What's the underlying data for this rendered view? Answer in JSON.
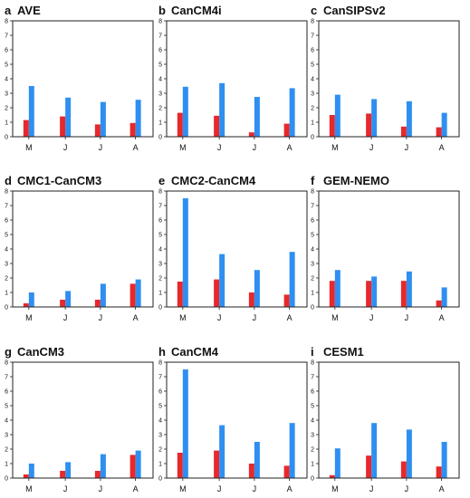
{
  "colors": {
    "series_red": "#e8282b",
    "series_blue": "#2f8ff0",
    "axis": "#222222"
  },
  "chart_data": [
    {
      "type": "bar",
      "panel_letter": "a",
      "title": "AVE",
      "categories": [
        "M",
        "J",
        "J",
        "A"
      ],
      "ylim": [
        0,
        8
      ],
      "yticks": [
        0,
        1,
        2,
        3,
        4,
        5,
        6,
        7,
        8
      ],
      "series": [
        {
          "values": [
            1.15,
            1.4,
            0.85,
            0.95
          ]
        },
        {
          "values": [
            3.5,
            2.7,
            2.4,
            2.55
          ]
        }
      ]
    },
    {
      "type": "bar",
      "panel_letter": "b",
      "title": "CanCM4i",
      "categories": [
        "M",
        "J",
        "J",
        "A"
      ],
      "ylim": [
        0,
        8
      ],
      "yticks": [
        0,
        1,
        2,
        3,
        4,
        5,
        6,
        7,
        8
      ],
      "series": [
        {
          "values": [
            1.65,
            1.45,
            0.3,
            0.9
          ]
        },
        {
          "values": [
            3.45,
            3.7,
            2.75,
            3.35
          ]
        }
      ]
    },
    {
      "type": "bar",
      "panel_letter": "c",
      "title": "CanSIPSv2",
      "categories": [
        "M",
        "J",
        "J",
        "A"
      ],
      "ylim": [
        0,
        8
      ],
      "yticks": [
        0,
        1,
        2,
        3,
        4,
        5,
        6,
        7,
        8
      ],
      "series": [
        {
          "values": [
            1.5,
            1.6,
            0.7,
            0.65
          ]
        },
        {
          "values": [
            2.9,
            2.6,
            2.45,
            1.65
          ]
        }
      ]
    },
    {
      "type": "bar",
      "panel_letter": "d",
      "title": "CMC1-CanCM3",
      "categories": [
        "M",
        "J",
        "J",
        "A"
      ],
      "ylim": [
        0,
        8
      ],
      "yticks": [
        0,
        1,
        2,
        3,
        4,
        5,
        6,
        7,
        8
      ],
      "series": [
        {
          "values": [
            0.25,
            0.5,
            0.5,
            1.6
          ]
        },
        {
          "values": [
            1.0,
            1.1,
            1.6,
            1.9
          ]
        }
      ]
    },
    {
      "type": "bar",
      "panel_letter": "e",
      "title": "CMC2-CanCM4",
      "categories": [
        "M",
        "J",
        "J",
        "A"
      ],
      "ylim": [
        0,
        8
      ],
      "yticks": [
        0,
        1,
        2,
        3,
        4,
        5,
        6,
        7,
        8
      ],
      "series": [
        {
          "values": [
            1.75,
            1.9,
            1.0,
            0.85
          ]
        },
        {
          "values": [
            7.5,
            3.65,
            2.55,
            3.8
          ]
        }
      ]
    },
    {
      "type": "bar",
      "panel_letter": "f",
      "title": "GEM-NEMO",
      "categories": [
        "M",
        "J",
        "J",
        "A"
      ],
      "ylim": [
        0,
        8
      ],
      "yticks": [
        0,
        1,
        2,
        3,
        4,
        5,
        6,
        7,
        8
      ],
      "series": [
        {
          "values": [
            1.8,
            1.8,
            1.8,
            0.45
          ]
        },
        {
          "values": [
            2.55,
            2.1,
            2.45,
            1.35
          ]
        }
      ]
    },
    {
      "type": "bar",
      "panel_letter": "g",
      "title": "CanCM3",
      "categories": [
        "M",
        "J",
        "J",
        "A"
      ],
      "ylim": [
        0,
        8
      ],
      "yticks": [
        0,
        1,
        2,
        3,
        4,
        5,
        6,
        7,
        8
      ],
      "series": [
        {
          "values": [
            0.25,
            0.5,
            0.5,
            1.6
          ]
        },
        {
          "values": [
            1.0,
            1.1,
            1.65,
            1.9
          ]
        }
      ]
    },
    {
      "type": "bar",
      "panel_letter": "h",
      "title": "CanCM4",
      "categories": [
        "M",
        "J",
        "J",
        "A"
      ],
      "ylim": [
        0,
        8
      ],
      "yticks": [
        0,
        1,
        2,
        3,
        4,
        5,
        6,
        7,
        8
      ],
      "series": [
        {
          "values": [
            1.75,
            1.9,
            1.0,
            0.85
          ]
        },
        {
          "values": [
            7.5,
            3.65,
            2.5,
            3.8
          ]
        }
      ]
    },
    {
      "type": "bar",
      "panel_letter": "i",
      "title": "CESM1",
      "categories": [
        "M",
        "J",
        "J",
        "A"
      ],
      "ylim": [
        0,
        8
      ],
      "yticks": [
        0,
        1,
        2,
        3,
        4,
        5,
        6,
        7,
        8
      ],
      "series": [
        {
          "values": [
            0.2,
            1.55,
            1.15,
            0.8
          ]
        },
        {
          "values": [
            2.05,
            3.8,
            3.35,
            2.5
          ]
        }
      ]
    }
  ]
}
